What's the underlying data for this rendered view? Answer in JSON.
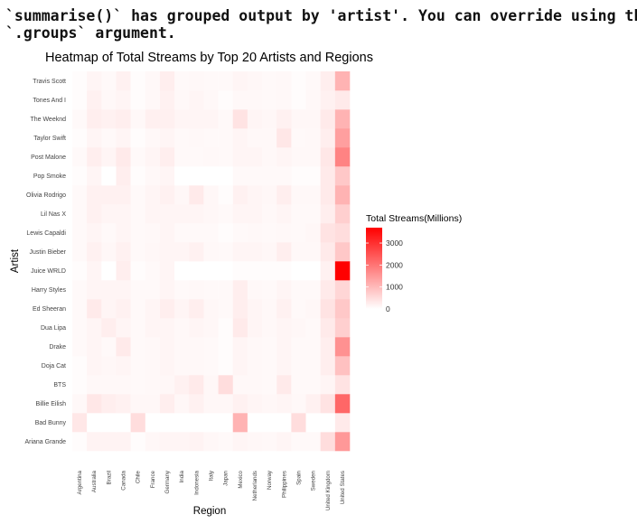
{
  "console": {
    "line1": "`summarise()` has grouped output by 'artist'. You can override using the",
    "line2": "`.groups` argument."
  },
  "colors": {
    "low": "#ffffff",
    "high": "#ff0000"
  },
  "chart_data": {
    "type": "heatmap",
    "title": "Heatmap of Total Streams by Top 20 Artists and Regions",
    "xlabel": "Region",
    "ylabel": "Artist",
    "legend": {
      "title": "Total Streams(Millions)",
      "ticks": [
        0,
        1000,
        2000,
        3000
      ],
      "range": [
        0,
        3700
      ],
      "placement": "right"
    },
    "grid": false,
    "x": [
      "Argentina",
      "Australia",
      "Brazil",
      "Canada",
      "Chile",
      "France",
      "Germany",
      "India",
      "Indonesia",
      "Italy",
      "Japan",
      "Mexico",
      "Netherlands",
      "Norway",
      "Philippines",
      "Spain",
      "Sweden",
      "United Kingdom",
      "United States"
    ],
    "y": [
      "Ariana Grande",
      "Bad Bunny",
      "Billie Eilish",
      "BTS",
      "Doja Cat",
      "Drake",
      "Dua Lipa",
      "Ed Sheeran",
      "Harry Styles",
      "Juice WRLD",
      "Justin Bieber",
      "Lewis Capaldi",
      "Lil Nas X",
      "Olivia Rodrigo",
      "Pop Smoke",
      "Post Malone",
      "Taylor Swift",
      "The Weeknd",
      "Tones And I",
      "Travis Scott"
    ],
    "values": [
      [
        50,
        180,
        180,
        180,
        50,
        120,
        150,
        150,
        180,
        120,
        80,
        150,
        120,
        100,
        150,
        80,
        80,
        500,
        1500
      ],
      [
        350,
        0,
        0,
        0,
        500,
        0,
        0,
        0,
        0,
        0,
        0,
        1100,
        0,
        0,
        0,
        500,
        0,
        0,
        300
      ],
      [
        100,
        350,
        250,
        200,
        120,
        120,
        250,
        120,
        200,
        120,
        120,
        200,
        150,
        120,
        150,
        100,
        200,
        400,
        2200
      ],
      [
        50,
        100,
        100,
        100,
        80,
        100,
        120,
        200,
        300,
        120,
        500,
        100,
        100,
        80,
        300,
        80,
        80,
        150,
        400
      ],
      [
        50,
        150,
        120,
        150,
        80,
        100,
        150,
        100,
        100,
        80,
        50,
        150,
        100,
        80,
        150,
        80,
        80,
        250,
        900
      ],
      [
        80,
        150,
        80,
        300,
        80,
        100,
        150,
        100,
        100,
        80,
        50,
        150,
        100,
        80,
        150,
        80,
        80,
        250,
        1600
      ],
      [
        80,
        150,
        250,
        150,
        80,
        150,
        150,
        100,
        150,
        120,
        50,
        300,
        150,
        100,
        150,
        120,
        80,
        300,
        700
      ],
      [
        80,
        300,
        150,
        200,
        80,
        150,
        250,
        150,
        250,
        120,
        80,
        250,
        150,
        100,
        200,
        80,
        120,
        400,
        800
      ],
      [
        80,
        150,
        150,
        150,
        80,
        80,
        150,
        80,
        100,
        80,
        80,
        250,
        100,
        80,
        150,
        80,
        80,
        300,
        600
      ],
      [
        50,
        150,
        0,
        250,
        50,
        80,
        150,
        0,
        0,
        0,
        0,
        50,
        50,
        50,
        50,
        0,
        0,
        200,
        3700
      ],
      [
        80,
        200,
        120,
        200,
        80,
        120,
        150,
        150,
        200,
        100,
        80,
        150,
        150,
        120,
        250,
        100,
        100,
        300,
        800
      ],
      [
        80,
        150,
        80,
        150,
        80,
        100,
        150,
        80,
        80,
        80,
        50,
        80,
        100,
        80,
        100,
        80,
        120,
        400,
        500
      ],
      [
        80,
        200,
        150,
        150,
        80,
        150,
        150,
        150,
        150,
        120,
        80,
        150,
        150,
        100,
        150,
        80,
        80,
        250,
        700
      ],
      [
        80,
        200,
        200,
        200,
        80,
        150,
        200,
        120,
        300,
        120,
        50,
        200,
        150,
        120,
        250,
        100,
        100,
        300,
        1100
      ],
      [
        50,
        150,
        0,
        250,
        50,
        100,
        150,
        0,
        0,
        0,
        0,
        80,
        80,
        80,
        80,
        50,
        50,
        300,
        800
      ],
      [
        80,
        250,
        150,
        300,
        80,
        150,
        250,
        80,
        80,
        100,
        80,
        150,
        150,
        100,
        150,
        100,
        100,
        350,
        1800
      ],
      [
        50,
        150,
        80,
        150,
        50,
        100,
        150,
        80,
        100,
        80,
        80,
        150,
        100,
        100,
        350,
        80,
        100,
        250,
        1400
      ],
      [
        80,
        250,
        200,
        250,
        100,
        220,
        220,
        150,
        150,
        150,
        80,
        400,
        150,
        120,
        200,
        120,
        120,
        300,
        1100
      ],
      [
        50,
        200,
        100,
        150,
        50,
        100,
        200,
        100,
        150,
        100,
        50,
        100,
        100,
        80,
        100,
        50,
        100,
        200,
        300
      ],
      [
        50,
        150,
        80,
        200,
        50,
        100,
        250,
        80,
        100,
        80,
        80,
        150,
        120,
        80,
        100,
        50,
        80,
        250,
        1100
      ]
    ]
  }
}
